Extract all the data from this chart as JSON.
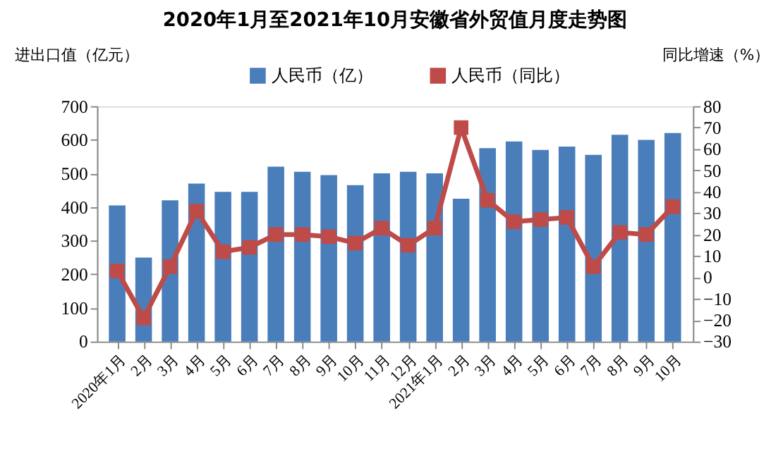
{
  "chart_data": {
    "type": "bar",
    "title": "2020年1月至2021年10月安徽省外贸值月度走势图",
    "ylabel": "进出口值（亿元）",
    "y2label": "同比增速（%）",
    "categories": [
      "2020年1月",
      "2月",
      "3月",
      "4月",
      "5月",
      "6月",
      "7月",
      "8月",
      "9月",
      "10月",
      "11月",
      "12月",
      "2021年1月",
      "2月",
      "3月",
      "4月",
      "5月",
      "6月",
      "7月",
      "8月",
      "9月",
      "10月"
    ],
    "series": [
      {
        "name": "人民币（亿）",
        "color": "#4a7ebb",
        "values": [
          405,
          250,
          420,
          470,
          445,
          445,
          520,
          505,
          495,
          465,
          500,
          505,
          500,
          425,
          575,
          595,
          570,
          580,
          555,
          615,
          600,
          620
        ]
      },
      {
        "name": "人民币（同比）",
        "type": "line",
        "axis": "y2",
        "color": "#be4b48",
        "marker": "square",
        "values": [
          3,
          -19,
          5,
          31,
          12,
          14,
          20,
          20,
          19,
          16,
          23,
          15,
          23,
          70,
          36,
          26,
          27,
          28,
          5,
          21,
          20,
          33
        ]
      }
    ],
    "ylim": [
      0,
      700
    ],
    "yticks": [
      0,
      100,
      200,
      300,
      400,
      500,
      600,
      700
    ],
    "y2lim": [
      -30,
      80
    ],
    "y2ticks": [
      -30,
      -20,
      -10,
      0,
      10,
      20,
      30,
      40,
      50,
      60,
      70,
      80
    ],
    "legend": "top",
    "grid": false
  }
}
